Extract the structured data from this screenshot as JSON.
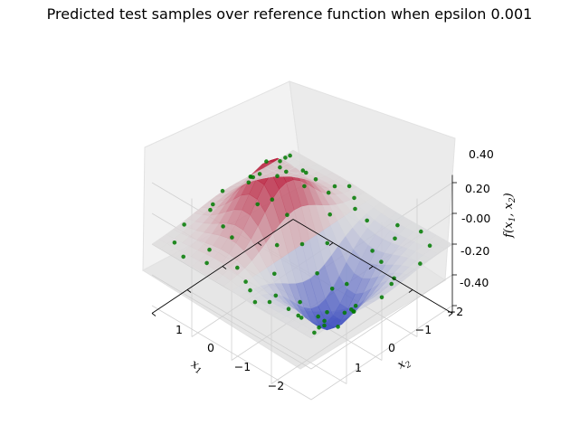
{
  "title": "Predicted test samples over reference function when epsilon 0.001",
  "axes": {
    "x1_label": "x1",
    "x2_label": "x2",
    "z_label": "f(x1, x2)",
    "x1_ticks": [
      "1",
      "0",
      "−1",
      "−2"
    ],
    "x2_ticks": [
      "−2",
      "−1",
      "0",
      "1"
    ],
    "z_ticks": [
      "0.40",
      "0.20",
      "-0.00",
      "-0.20",
      "-0.40"
    ]
  },
  "chart_data": {
    "type": "scatter",
    "subtype": "3d-surface-with-scatter",
    "title": "Predicted test samples over reference function when epsilon 0.001",
    "xlabel": "x1",
    "ylabel": "x2",
    "zlabel": "f(x1, x2)",
    "xlim": [
      -2,
      2
    ],
    "ylim": [
      -2,
      2
    ],
    "zlim": [
      -0.45,
      0.45
    ],
    "x_ticks": [
      1,
      0,
      -1,
      -2
    ],
    "y_ticks": [
      -2,
      -1,
      0,
      1
    ],
    "z_ticks": [
      0.4,
      0.2,
      0.0,
      -0.2,
      -0.4
    ],
    "surface": {
      "function": "x1 * exp(-(x1^2 + x2^2))",
      "colormap": "coolwarm",
      "x1_range": [
        -2,
        2
      ],
      "x2_range": [
        -2,
        2
      ],
      "grid_steps": 20
    },
    "series": [
      {
        "color": "#007a00",
        "points": [
          [
            0.6,
            0.2,
            0.44
          ],
          [
            0.8,
            -0.3,
            0.38
          ],
          [
            1.0,
            0.5,
            0.31
          ],
          [
            0.5,
            -0.7,
            0.29
          ],
          [
            0.3,
            0.4,
            0.27
          ],
          [
            1.2,
            -0.1,
            0.27
          ],
          [
            0.7,
            0.9,
            0.22
          ],
          [
            0.2,
            -0.2,
            0.19
          ],
          [
            1.5,
            0.3,
            0.16
          ],
          [
            0.4,
            1.2,
            0.09
          ],
          [
            1.1,
            -1.0,
            0.1
          ],
          [
            0.9,
            1.4,
            0.07
          ],
          [
            1.8,
            -0.5,
            0.06
          ],
          [
            0.1,
            0.9,
            0.04
          ],
          [
            1.6,
            1.1,
            0.03
          ],
          [
            0.3,
            -1.5,
            0.03
          ],
          [
            1.9,
            1.8,
            0.01
          ],
          [
            1.7,
            -1.7,
            0.01
          ],
          [
            0.5,
            1.9,
            0.01
          ],
          [
            1.3,
            -1.9,
            0.01
          ],
          [
            -0.6,
            -0.2,
            -0.42
          ],
          [
            -0.8,
            0.3,
            -0.37
          ],
          [
            -1.0,
            -0.5,
            -0.3
          ],
          [
            -0.5,
            0.7,
            -0.29
          ],
          [
            -0.3,
            -0.4,
            -0.27
          ],
          [
            -1.2,
            0.1,
            -0.27
          ],
          [
            -0.7,
            -0.9,
            -0.22
          ],
          [
            -0.2,
            0.2,
            -0.19
          ],
          [
            -1.5,
            -0.3,
            -0.15
          ],
          [
            -0.4,
            -1.2,
            -0.09
          ],
          [
            -1.1,
            1.0,
            -0.1
          ],
          [
            -0.9,
            -1.4,
            -0.07
          ],
          [
            -1.8,
            0.5,
            -0.06
          ],
          [
            -0.1,
            -0.9,
            -0.04
          ],
          [
            -1.6,
            -1.1,
            -0.03
          ],
          [
            -0.3,
            1.5,
            -0.03
          ],
          [
            -1.9,
            -1.8,
            -0.01
          ],
          [
            -1.7,
            1.7,
            -0.01
          ],
          [
            -0.5,
            -1.9,
            -0.01
          ],
          [
            -1.3,
            1.9,
            -0.01
          ],
          [
            0.0,
            0.0,
            0.0
          ],
          [
            0.0,
            1.5,
            0.0
          ],
          [
            0.0,
            -1.6,
            0.0
          ],
          [
            2.0,
            0.0,
            0.04
          ],
          [
            -2.0,
            0.0,
            -0.04
          ],
          [
            1.4,
            1.6,
            0.02
          ],
          [
            -1.4,
            -1.6,
            -0.02
          ],
          [
            0.8,
            -1.8,
            0.03
          ],
          [
            -0.8,
            1.8,
            -0.03
          ],
          [
            1.9,
            -1.2,
            0.02
          ],
          [
            -1.9,
            1.2,
            -0.02
          ],
          [
            0.2,
            1.7,
            0.01
          ],
          [
            -0.2,
            -1.7,
            -0.01
          ],
          [
            1.2,
            0.9,
            0.15
          ],
          [
            -1.2,
            -0.9,
            -0.15
          ],
          [
            0.9,
            0.0,
            0.4
          ],
          [
            -0.9,
            0.0,
            -0.4
          ],
          [
            0.4,
            -0.4,
            0.29
          ],
          [
            -0.4,
            0.4,
            -0.29
          ],
          [
            1.6,
            -0.8,
            0.1
          ],
          [
            -1.6,
            0.8,
            -0.1
          ],
          [
            0.6,
            1.6,
            0.04
          ],
          [
            -0.6,
            -1.6,
            -0.04
          ],
          [
            1.0,
            -1.5,
            0.04
          ],
          [
            -1.0,
            1.5,
            -0.04
          ],
          [
            1.7,
            0.4,
            0.08
          ],
          [
            -1.7,
            -0.4,
            -0.08
          ],
          [
            0.1,
            -0.6,
            0.07
          ],
          [
            -0.1,
            0.6,
            -0.07
          ],
          [
            1.3,
            0.0,
            0.24
          ],
          [
            -1.3,
            0.0,
            -0.24
          ],
          [
            0.7,
            -1.2,
            0.12
          ],
          [
            -0.7,
            1.2,
            -0.12
          ],
          [
            1.8,
            1.4,
            0.01
          ],
          [
            -1.8,
            -1.4,
            -0.01
          ]
        ]
      }
    ]
  }
}
